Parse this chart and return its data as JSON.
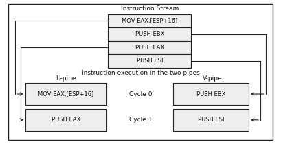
{
  "title": "Instruction Stream",
  "subtitle": "Instruction execution in the two pipes",
  "instruction_stream": [
    "MOV EAX,[ESP+16]",
    "PUSH EBX",
    "PUSH EAX",
    "PUSH ESI"
  ],
  "upipe_label": "U-pipe",
  "vpipe_label": "V-pipe",
  "upipe_instructions": [
    "MOV EAX,[ESP+16]",
    "PUSH EAX"
  ],
  "vpipe_instructions": [
    "PUSH EBX",
    "PUSH ESI"
  ],
  "cycle_labels": [
    "Cycle 0",
    "Cycle 1"
  ],
  "box_facecolor": "#eeeeee",
  "box_edgecolor": "#222222",
  "background_color": "#ffffff",
  "text_color": "#111111",
  "font_size": 6.5
}
